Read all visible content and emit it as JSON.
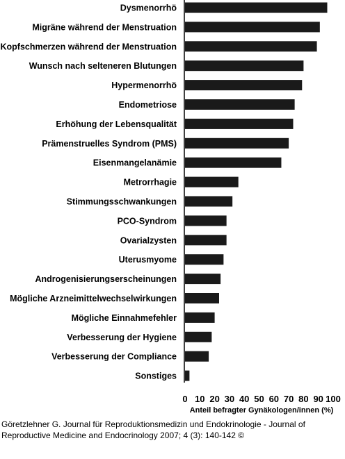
{
  "chart_data": {
    "type": "bar",
    "orientation": "horizontal",
    "categories": [
      "Dysmenorrhö",
      "Migräne während der Menstruation",
      "Kopfschmerzen während der Menstruation",
      "Wunsch nach selteneren Blutungen",
      "Hypermenorrhö",
      "Endometriose",
      "Erhöhung der Lebensqualität",
      "Prämenstruelles Syndrom (PMS)",
      "Eisenmangelanämie",
      "Metrorrhagie",
      "Stimmungsschwankungen",
      "PCO-Syndrom",
      "Ovarialzysten",
      "Uterusmyome",
      "Androgenisierungserscheinungen",
      "Mögliche Arzneimittelwechselwirkungen",
      "Mögliche Einnahmefehler",
      "Verbesserung der Hygiene",
      "Verbesserung der Compliance",
      "Sonstiges"
    ],
    "values": [
      96,
      91,
      89,
      80,
      79,
      74,
      73,
      70,
      65,
      36,
      32,
      28,
      28,
      26,
      24,
      23,
      20,
      18,
      16,
      3
    ],
    "xlabel": "Anteil befragter Gynäkologen/innen (%)",
    "ylabel": "",
    "xlim": [
      0,
      100
    ],
    "xticks": [
      "0",
      "10",
      "20",
      "30",
      "40",
      "50",
      "60",
      "70",
      "80",
      "90",
      "100"
    ],
    "grid": false,
    "bar_color": "#1a1a1a"
  },
  "citation": "Göretzlehner G. Journal für Reproduktionsmedizin und Endokrinologie - Journal of Reproductive Medicine and Endocrinology 2007; 4 (3): 140-142 ©"
}
